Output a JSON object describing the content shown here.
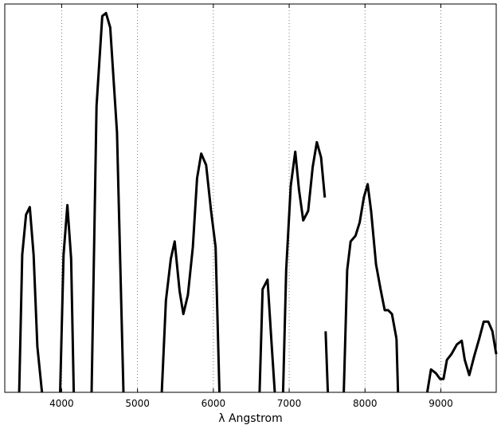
{
  "chart_data": {
    "type": "line",
    "title": "",
    "xlabel": "λ  Angstrom",
    "ylabel": "",
    "xlim": [
      3250,
      9730
    ],
    "ylim": [
      0,
      1
    ],
    "grid": "vertical-dotted",
    "xticks": [
      4000,
      5000,
      6000,
      7000,
      8000,
      9000
    ],
    "xtick_labels": [
      "4000",
      "5000",
      "6000",
      "7000",
      "8000",
      "9000"
    ],
    "line_color": "#000000",
    "segments": [
      {
        "x": [
          3440,
          3480,
          3530,
          3580,
          3630,
          3680,
          3740
        ],
        "y": [
          0.0,
          0.36,
          0.465,
          0.485,
          0.36,
          0.12,
          0.0
        ]
      },
      {
        "x": [
          3980,
          4025,
          4075,
          4125,
          4160
        ],
        "y": [
          0.0,
          0.36,
          0.49,
          0.35,
          0.0
        ]
      },
      {
        "x": [
          4395,
          4460,
          4535,
          4585,
          4640,
          4730,
          4815
        ],
        "y": [
          0.0,
          0.75,
          0.985,
          0.993,
          0.955,
          0.68,
          0.0
        ]
      },
      {
        "x": [
          5320,
          5375,
          5440,
          5490,
          5555,
          5605,
          5665,
          5730,
          5785,
          5840,
          5905,
          5970,
          6030,
          6080
        ],
        "y": [
          0.0,
          0.24,
          0.35,
          0.395,
          0.265,
          0.205,
          0.255,
          0.38,
          0.56,
          0.625,
          0.595,
          0.475,
          0.38,
          0.0
        ]
      },
      {
        "x": [
          6610,
          6650,
          6715,
          6770,
          6810
        ],
        "y": [
          0.0,
          0.27,
          0.295,
          0.12,
          0.0
        ]
      },
      {
        "x": [
          6920,
          6960,
          7020,
          7080,
          7130,
          7185,
          7250,
          7310,
          7365,
          7420,
          7470
        ],
        "y": [
          0.0,
          0.32,
          0.54,
          0.63,
          0.53,
          0.45,
          0.475,
          0.59,
          0.655,
          0.615,
          0.51
        ]
      },
      {
        "x": [
          7480,
          7510
        ],
        "y": [
          0.16,
          0.0
        ]
      },
      {
        "x": [
          7720,
          7765,
          7810,
          7875,
          7930,
          7985,
          8035,
          8080,
          8145,
          8205,
          8260,
          8305,
          8355,
          8415
        ],
        "y": [
          0.0,
          0.32,
          0.395,
          0.41,
          0.445,
          0.51,
          0.545,
          0.475,
          0.335,
          0.27,
          0.215,
          0.215,
          0.205,
          0.14
        ]
      },
      {
        "x": [
          8415,
          8435
        ],
        "y": [
          0.14,
          0.0
        ]
      },
      {
        "x": [
          8820,
          8870,
          8935,
          8990,
          9035,
          9080,
          9140,
          9210,
          9275,
          9315,
          9375,
          9440,
          9505,
          9565,
          9625,
          9680,
          9730
        ],
        "y": [
          0.0,
          0.06,
          0.05,
          0.035,
          0.035,
          0.085,
          0.1,
          0.125,
          0.135,
          0.085,
          0.045,
          0.095,
          0.14,
          0.185,
          0.185,
          0.16,
          0.1
        ]
      }
    ]
  }
}
